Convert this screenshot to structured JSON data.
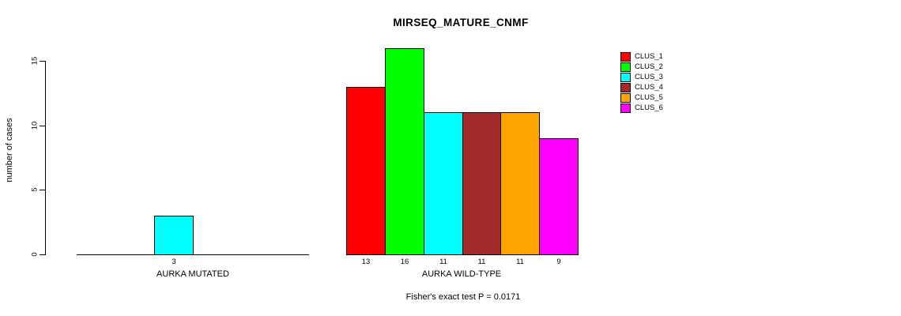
{
  "chart_data": {
    "type": "bar",
    "title": "MIRSEQ_MATURE_CNMF",
    "ylabel": "number of cases",
    "xlabel": "",
    "yticks": [
      0,
      5,
      10,
      15
    ],
    "ylim": [
      0,
      16
    ],
    "grid": false,
    "legend_position": "top-right",
    "categories": [
      "AURKA MUTATED",
      "AURKA WILD-TYPE"
    ],
    "series": [
      {
        "name": "CLUS_1",
        "color": "#FF0000",
        "values": [
          0,
          13
        ]
      },
      {
        "name": "CLUS_2",
        "color": "#00FF00",
        "values": [
          0,
          16
        ]
      },
      {
        "name": "CLUS_3",
        "color": "#00FFFF",
        "values": [
          3,
          11
        ]
      },
      {
        "name": "CLUS_4",
        "color": "#A52A2A",
        "values": [
          0,
          11
        ]
      },
      {
        "name": "CLUS_5",
        "color": "#FFA500",
        "values": [
          0,
          11
        ]
      },
      {
        "name": "CLUS_6",
        "color": "#FF00FF",
        "values": [
          0,
          9
        ]
      }
    ],
    "bar_value_labels": [
      [
        "3"
      ],
      [
        "13",
        "16",
        "11",
        "11",
        "11",
        "9"
      ]
    ],
    "footnote": "Fisher's exact test P = 0.0171",
    "axis_color": "#000000",
    "background_color": "#FFFFFF"
  }
}
